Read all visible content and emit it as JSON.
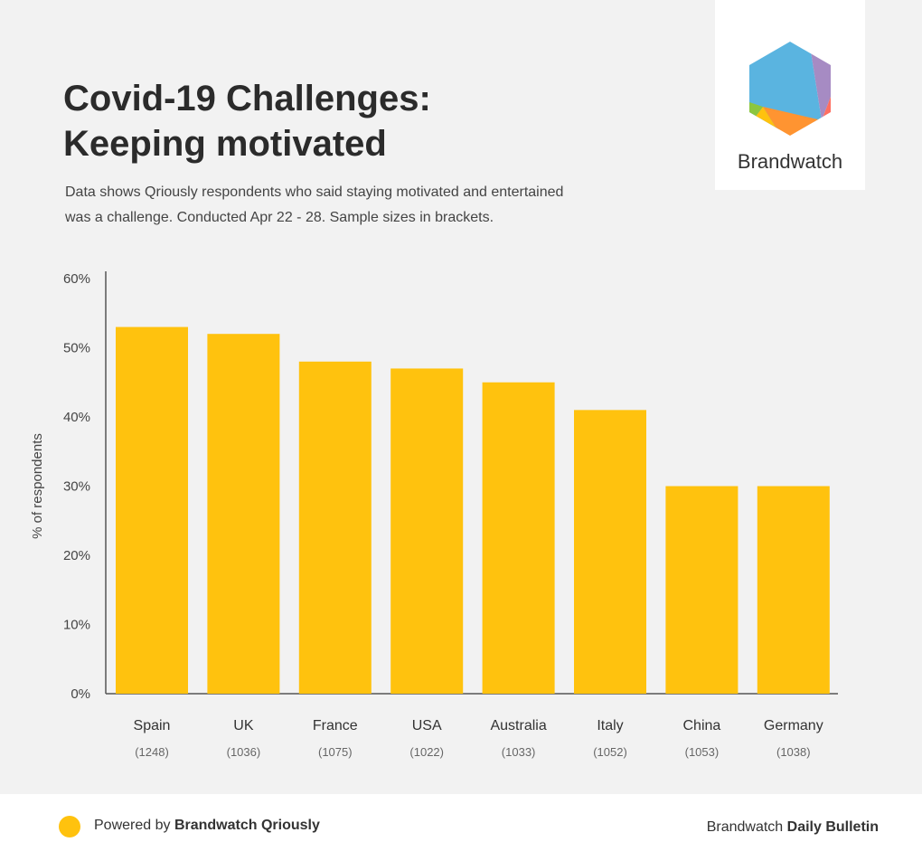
{
  "header": {
    "title_line1": "Covid-19 Challenges:",
    "title_line2": "Keeping motivated",
    "subtitle_line1": "Data shows Qriously respondents who said staying motivated and entertained",
    "subtitle_line2": "was a challenge. Conducted Apr 22 - 28. Sample sizes in brackets."
  },
  "logo": {
    "text": "Brandwatch",
    "colors": [
      "#5ab4e0",
      "#a68bc3",
      "#ff6f61",
      "#ff9431",
      "#ffc20e",
      "#8cc63f"
    ]
  },
  "chart_data": {
    "type": "bar",
    "categories": [
      "Spain",
      "UK",
      "France",
      "USA",
      "Australia",
      "Italy",
      "China",
      "Germany"
    ],
    "sample_sizes": [
      "(1248)",
      "(1036)",
      "(1075)",
      "(1022)",
      "(1033)",
      "(1052)",
      "(1053)",
      "(1038)"
    ],
    "values": [
      53,
      52,
      48,
      47,
      45,
      41,
      30,
      30
    ],
    "ylabel": "% of respondents",
    "ylim": [
      0,
      60
    ],
    "yticks": [
      "0%",
      "10%",
      "20%",
      "30%",
      "40%",
      "50%",
      "60%"
    ],
    "bar_color": "#ffc20e",
    "grid": false
  },
  "footer": {
    "powered_prefix": "Powered by ",
    "powered_brand": "Brandwatch Qriously",
    "right_prefix": "Brandwatch ",
    "right_brand": "Daily Bulletin",
    "dot_color": "#ffc20e"
  }
}
